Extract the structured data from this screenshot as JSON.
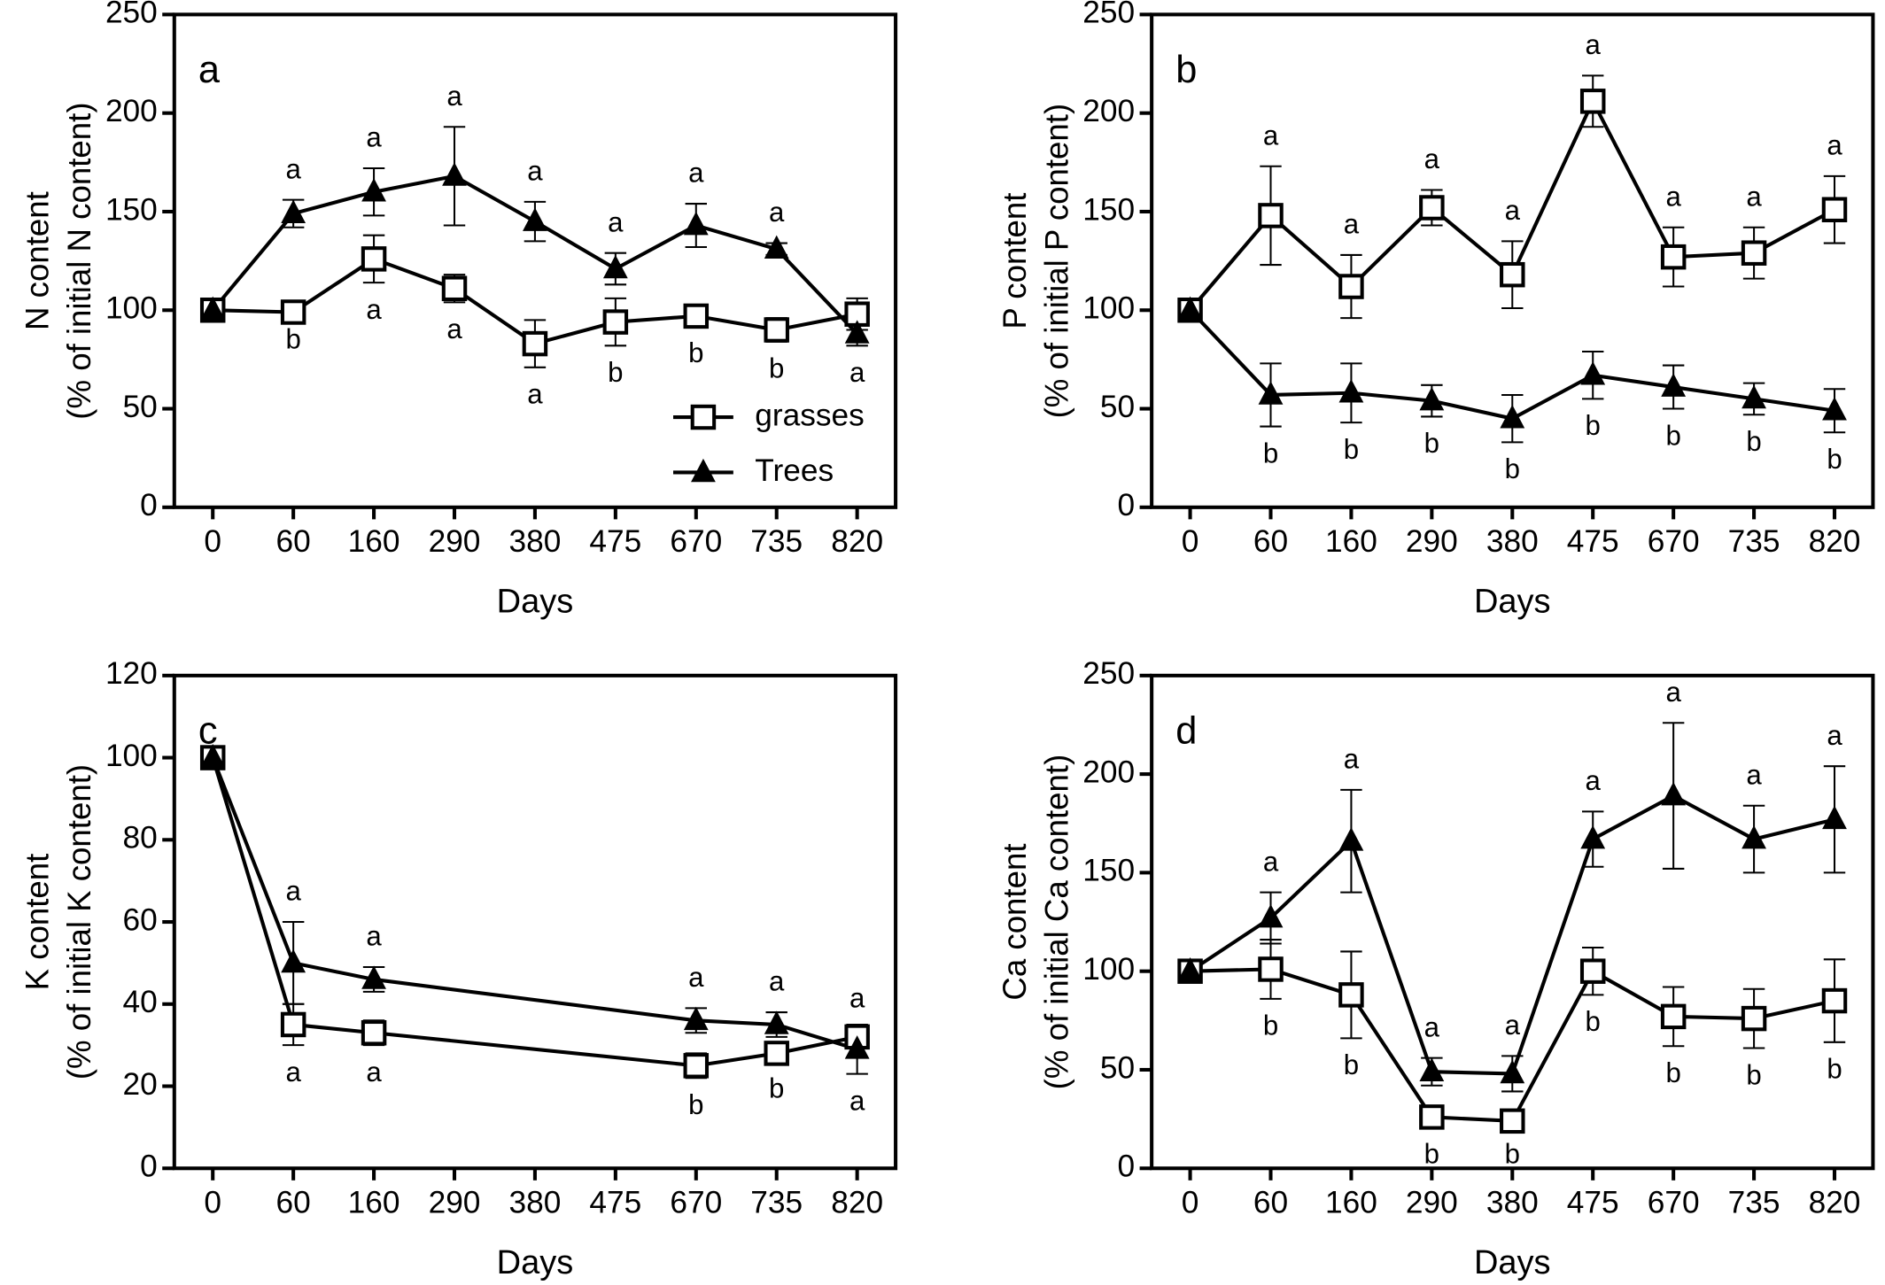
{
  "chart_data": [
    {
      "type": "line",
      "label": "a",
      "ylabel": [
        "N content",
        "(% of initial N content)"
      ],
      "xlabel": "Days",
      "categories": [
        "0",
        "60",
        "160",
        "290",
        "380",
        "475",
        "670",
        "735",
        "820"
      ],
      "ylim": [
        0,
        250
      ],
      "yticks": [
        0,
        50,
        100,
        150,
        200,
        250
      ],
      "legend": "lower right",
      "series": [
        {
          "name": "grasses",
          "color": "#000000",
          "marker": "square",
          "fill": "#ffffff",
          "values": [
            100,
            99,
            126,
            111,
            83,
            94,
            97,
            90,
            98
          ],
          "errors": [
            0,
            0,
            12,
            7,
            12,
            12,
            5,
            6,
            8
          ],
          "letters": [
            null,
            "b",
            "a",
            "a",
            "a",
            "b",
            "b",
            "b",
            null
          ]
        },
        {
          "name": "Trees",
          "color": "#000000",
          "marker": "triangle",
          "fill": "#000000",
          "values": [
            100,
            149,
            160,
            168,
            145,
            121,
            143,
            131,
            88
          ],
          "errors": [
            0,
            7,
            12,
            25,
            10,
            8,
            11,
            3,
            6
          ],
          "letters": [
            null,
            "a",
            "a",
            "a",
            "a",
            "a",
            "a",
            "a",
            "a"
          ]
        }
      ]
    },
    {
      "type": "line",
      "label": "b",
      "ylabel": [
        "P content",
        "(% of initial P content)"
      ],
      "xlabel": "Days",
      "categories": [
        "0",
        "60",
        "160",
        "290",
        "380",
        "475",
        "670",
        "735",
        "820"
      ],
      "ylim": [
        0,
        250
      ],
      "yticks": [
        0,
        50,
        100,
        150,
        200,
        250
      ],
      "series": [
        {
          "name": "grasses",
          "color": "#000000",
          "marker": "square",
          "fill": "#ffffff",
          "values": [
            100,
            148,
            112,
            152,
            118,
            206,
            127,
            129,
            151
          ],
          "errors": [
            0,
            25,
            16,
            9,
            17,
            13,
            15,
            13,
            17
          ],
          "letters": [
            null,
            "a",
            "a",
            "a",
            "a",
            "a",
            "a",
            "a",
            "a"
          ]
        },
        {
          "name": "Trees",
          "color": "#000000",
          "marker": "triangle",
          "fill": "#000000",
          "values": [
            100,
            57,
            58,
            54,
            45,
            67,
            61,
            55,
            49
          ],
          "errors": [
            0,
            16,
            15,
            8,
            12,
            12,
            11,
            8,
            11
          ],
          "letters": [
            null,
            "b",
            "b",
            "b",
            "b",
            "b",
            "b",
            "b",
            "b"
          ]
        }
      ]
    },
    {
      "type": "line",
      "label": "c",
      "ylabel": [
        "K content",
        "(% of initial K content)"
      ],
      "xlabel": "Days",
      "categories": [
        "0",
        "60",
        "160",
        "290",
        "380",
        "475",
        "670",
        "735",
        "820"
      ],
      "ylim": [
        0,
        120
      ],
      "yticks": [
        0,
        20,
        40,
        60,
        80,
        100,
        120
      ],
      "connect_gaps": true,
      "series": [
        {
          "name": "grasses",
          "color": "#000000",
          "marker": "square",
          "fill": "#ffffff",
          "values": [
            100,
            35,
            33,
            null,
            null,
            null,
            25,
            28,
            32
          ],
          "errors": [
            0,
            5,
            3,
            null,
            null,
            null,
            3,
            2,
            2
          ],
          "letters": [
            null,
            "a",
            "a",
            null,
            null,
            null,
            "b",
            "b",
            "a"
          ]
        },
        {
          "name": "Trees",
          "color": "#000000",
          "marker": "triangle",
          "fill": "#000000",
          "values": [
            100,
            50,
            46,
            null,
            null,
            null,
            36,
            35,
            29
          ],
          "errors": [
            0,
            10,
            3,
            null,
            null,
            null,
            3,
            3,
            6
          ],
          "letters": [
            null,
            "a",
            "a",
            null,
            null,
            null,
            "a",
            "a",
            "a"
          ]
        }
      ]
    },
    {
      "type": "line",
      "label": "d",
      "ylabel": [
        "Ca content",
        "(% of initial Ca content)"
      ],
      "xlabel": "Days",
      "categories": [
        "0",
        "60",
        "160",
        "290",
        "380",
        "475",
        "670",
        "735",
        "820"
      ],
      "ylim": [
        0,
        250
      ],
      "yticks": [
        0,
        50,
        100,
        150,
        200,
        250
      ],
      "series": [
        {
          "name": "grasses",
          "color": "#000000",
          "marker": "square",
          "fill": "#ffffff",
          "values": [
            100,
            101,
            88,
            26,
            24,
            100,
            77,
            76,
            85
          ],
          "errors": [
            0,
            15,
            22,
            5,
            3,
            12,
            15,
            15,
            21
          ],
          "letters": [
            null,
            "b",
            "b",
            "b",
            "b",
            "b",
            "b",
            "b",
            "b"
          ]
        },
        {
          "name": "Trees",
          "color": "#000000",
          "marker": "triangle",
          "fill": "#000000",
          "values": [
            100,
            127,
            166,
            49,
            48,
            167,
            189,
            167,
            177
          ],
          "errors": [
            0,
            13,
            26,
            7,
            9,
            14,
            37,
            17,
            27
          ],
          "letters": [
            null,
            "a",
            "a",
            "a",
            "a",
            "a",
            "a",
            "a",
            "a"
          ]
        }
      ]
    }
  ]
}
